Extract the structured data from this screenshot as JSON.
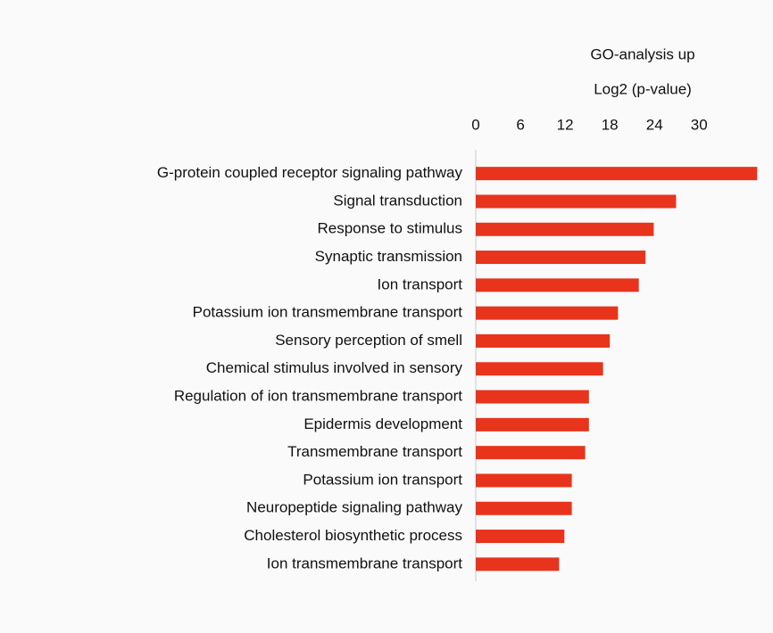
{
  "chart_data": {
    "type": "barh",
    "title": "GO-analysis up",
    "xlabel": "Log2 (p-value)",
    "categories": [
      "G-protein coupled receptor signaling pathway",
      "Signal transduction",
      "Response to stimulus",
      "Synaptic transmission",
      "Ion transport",
      "Potassium ion transmembrane transport",
      "Sensory perception of smell",
      "Chemical stimulus involved in sensory",
      "Regulation of ion transmembrane transport",
      "Epidermis development",
      "Transmembrane transport",
      "Potassium ion transport",
      "Neuropeptide signaling pathway",
      "Cholesterol biosynthetic process",
      "Ion transmembrane transport"
    ],
    "values": [
      37.8,
      26.9,
      23.9,
      22.8,
      21.9,
      19.1,
      18.0,
      17.1,
      15.2,
      15.2,
      14.7,
      12.9,
      12.9,
      11.9,
      11.2
    ],
    "color": "#e8341c",
    "xlim": [
      0,
      38
    ],
    "xticks": [
      0,
      6,
      12,
      18,
      24,
      30
    ],
    "xaxis_position": "top"
  }
}
